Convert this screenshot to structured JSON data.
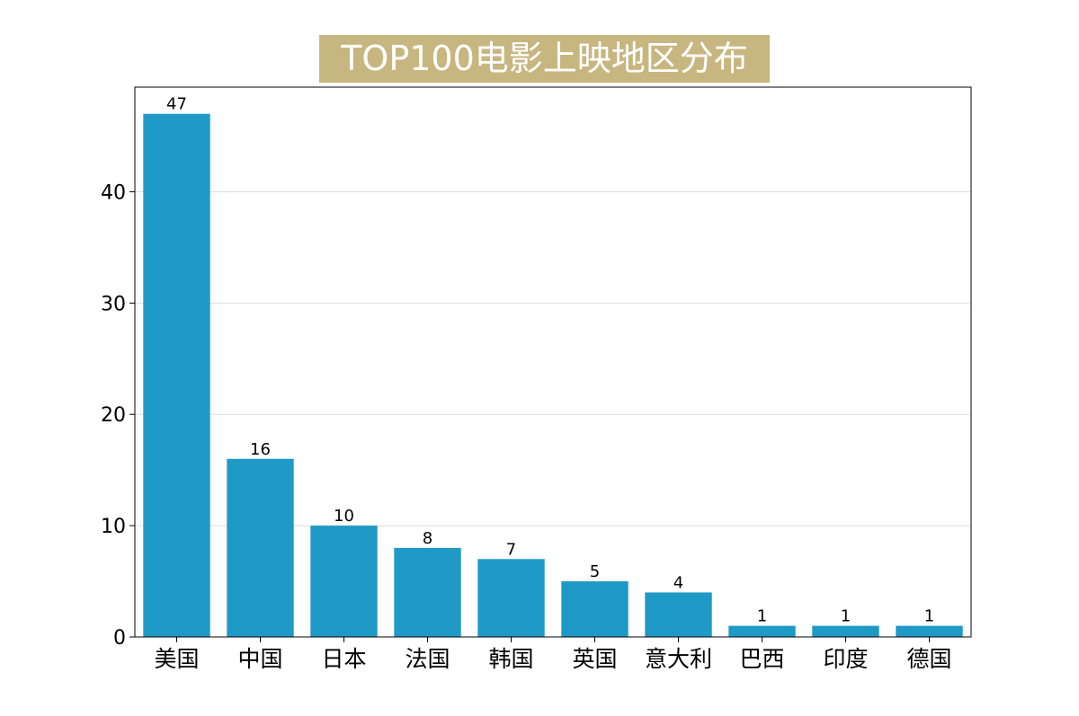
{
  "chart_data": {
    "type": "bar",
    "title": "TOP100电影上映地区分布",
    "categories": [
      "美国",
      "中国",
      "日本",
      "法国",
      "韩国",
      "英国",
      "意大利",
      "巴西",
      "印度",
      "德国"
    ],
    "values": [
      47,
      16,
      10,
      8,
      7,
      5,
      4,
      1,
      1,
      1
    ],
    "data_labels": [
      "47",
      "16",
      "10",
      "8",
      "7",
      "5",
      "4",
      "1",
      "1",
      "1"
    ],
    "yticks": [
      0,
      10,
      20,
      30,
      40
    ],
    "ylim": [
      0,
      49.4
    ],
    "grid": "horizontal",
    "xlabel": "",
    "ylabel": "",
    "colors": {
      "bar": "#1f9ac6",
      "title_background": "#c8b680",
      "title_text": "#ffffff",
      "grid": "#dddddd",
      "axes": "#000000"
    }
  }
}
